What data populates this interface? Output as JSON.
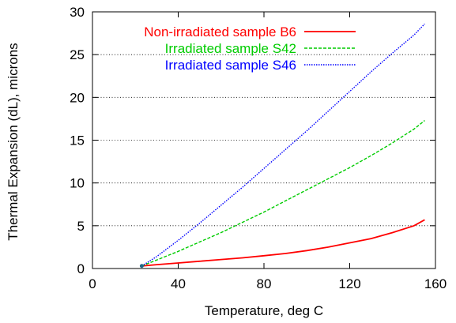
{
  "chart_data": {
    "type": "line",
    "xlabel": "Temperature, deg C",
    "ylabel": "Thermal Expansion (dL), microns",
    "xlim": [
      0,
      160
    ],
    "ylim": [
      0,
      30
    ],
    "xticks": [
      0,
      40,
      80,
      120,
      160
    ],
    "yticks": [
      0,
      5,
      10,
      15,
      20,
      25,
      30
    ],
    "grid": "horizontal dotted at y ticks",
    "legend_position": "top-left",
    "series": [
      {
        "name": "Non-irradiated sample B6",
        "color": "#ff0000",
        "style": "solid",
        "x": [
          23,
          30,
          40,
          50,
          60,
          70,
          80,
          90,
          100,
          110,
          120,
          130,
          140,
          150,
          155
        ],
        "y": [
          0.3,
          0.45,
          0.65,
          0.85,
          1.05,
          1.25,
          1.5,
          1.75,
          2.1,
          2.5,
          3.0,
          3.5,
          4.2,
          5.0,
          5.7
        ]
      },
      {
        "name": "Irradiated sample S42",
        "color": "#00cc00",
        "style": "dashed",
        "x": [
          23,
          30,
          40,
          50,
          60,
          70,
          80,
          90,
          100,
          110,
          120,
          130,
          140,
          150,
          155
        ],
        "y": [
          0.3,
          1.0,
          2.0,
          3.1,
          4.2,
          5.4,
          6.6,
          7.9,
          9.2,
          10.5,
          11.8,
          13.2,
          14.7,
          16.3,
          17.3
        ]
      },
      {
        "name": "Irradiated sample S46",
        "color": "#0000ff",
        "style": "dotted",
        "x": [
          23,
          30,
          40,
          50,
          60,
          70,
          80,
          90,
          100,
          110,
          120,
          130,
          140,
          150,
          155
        ],
        "y": [
          0.3,
          1.4,
          3.3,
          5.3,
          7.4,
          9.5,
          11.7,
          13.9,
          16.1,
          18.4,
          20.7,
          23.0,
          25.2,
          27.3,
          28.6
        ]
      }
    ]
  }
}
